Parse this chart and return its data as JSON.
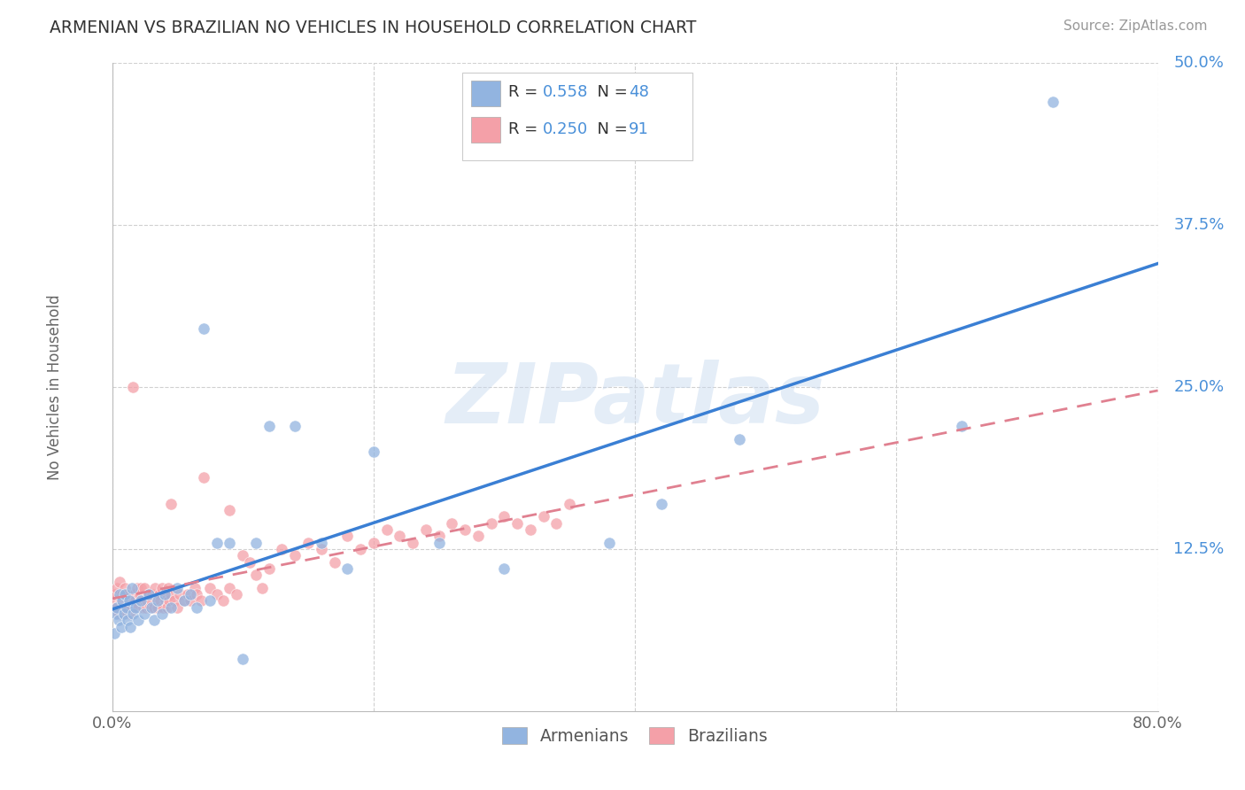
{
  "title": "ARMENIAN VS BRAZILIAN NO VEHICLES IN HOUSEHOLD CORRELATION CHART",
  "source": "Source: ZipAtlas.com",
  "ylabel": "No Vehicles in Household",
  "color_armenian": "#92b4e0",
  "color_brazilian": "#f4a0a8",
  "color_line_armenian": "#3a7fd4",
  "color_line_brazilian": "#e08090",
  "color_ytick": "#4a90d9",
  "watermark_text": "ZIPatlas",
  "background_color": "#ffffff",
  "grid_color": "#d0d0d0",
  "title_color": "#333333",
  "xlim": [
    0.0,
    0.8
  ],
  "ylim": [
    0.0,
    0.5
  ],
  "arm_x": [
    0.002,
    0.003,
    0.004,
    0.005,
    0.006,
    0.007,
    0.008,
    0.009,
    0.01,
    0.011,
    0.012,
    0.013,
    0.014,
    0.015,
    0.016,
    0.018,
    0.02,
    0.022,
    0.025,
    0.028,
    0.03,
    0.032,
    0.035,
    0.038,
    0.04,
    0.045,
    0.05,
    0.055,
    0.06,
    0.065,
    0.07,
    0.075,
    0.08,
    0.09,
    0.1,
    0.11,
    0.12,
    0.14,
    0.16,
    0.18,
    0.2,
    0.25,
    0.3,
    0.38,
    0.42,
    0.48,
    0.65,
    0.72
  ],
  "arm_y": [
    0.06,
    0.075,
    0.08,
    0.07,
    0.09,
    0.065,
    0.085,
    0.075,
    0.09,
    0.08,
    0.07,
    0.085,
    0.065,
    0.095,
    0.075,
    0.08,
    0.07,
    0.085,
    0.075,
    0.09,
    0.08,
    0.07,
    0.085,
    0.075,
    0.09,
    0.08,
    0.095,
    0.085,
    0.09,
    0.08,
    0.295,
    0.085,
    0.13,
    0.13,
    0.04,
    0.13,
    0.22,
    0.22,
    0.13,
    0.11,
    0.2,
    0.13,
    0.11,
    0.13,
    0.16,
    0.21,
    0.22,
    0.47
  ],
  "bra_x": [
    0.001,
    0.002,
    0.003,
    0.004,
    0.005,
    0.006,
    0.007,
    0.008,
    0.009,
    0.01,
    0.01,
    0.011,
    0.012,
    0.013,
    0.014,
    0.015,
    0.016,
    0.017,
    0.018,
    0.019,
    0.02,
    0.021,
    0.022,
    0.023,
    0.024,
    0.025,
    0.026,
    0.027,
    0.028,
    0.029,
    0.03,
    0.031,
    0.032,
    0.033,
    0.034,
    0.035,
    0.036,
    0.037,
    0.038,
    0.039,
    0.04,
    0.041,
    0.042,
    0.043,
    0.044,
    0.045,
    0.048,
    0.05,
    0.052,
    0.055,
    0.058,
    0.06,
    0.063,
    0.065,
    0.068,
    0.07,
    0.075,
    0.08,
    0.085,
    0.09,
    0.095,
    0.1,
    0.105,
    0.11,
    0.115,
    0.12,
    0.13,
    0.14,
    0.15,
    0.16,
    0.17,
    0.18,
    0.19,
    0.2,
    0.21,
    0.22,
    0.23,
    0.24,
    0.25,
    0.26,
    0.27,
    0.28,
    0.29,
    0.3,
    0.31,
    0.32,
    0.33,
    0.34,
    0.35,
    0.09,
    0.045
  ],
  "bra_y": [
    0.085,
    0.09,
    0.08,
    0.095,
    0.075,
    0.1,
    0.085,
    0.09,
    0.08,
    0.095,
    0.075,
    0.09,
    0.08,
    0.085,
    0.075,
    0.08,
    0.25,
    0.09,
    0.085,
    0.095,
    0.08,
    0.09,
    0.095,
    0.085,
    0.08,
    0.095,
    0.08,
    0.085,
    0.09,
    0.08,
    0.085,
    0.09,
    0.08,
    0.095,
    0.085,
    0.08,
    0.09,
    0.085,
    0.095,
    0.08,
    0.09,
    0.085,
    0.08,
    0.095,
    0.085,
    0.09,
    0.085,
    0.08,
    0.09,
    0.085,
    0.09,
    0.085,
    0.095,
    0.09,
    0.085,
    0.18,
    0.095,
    0.09,
    0.085,
    0.095,
    0.09,
    0.12,
    0.115,
    0.105,
    0.095,
    0.11,
    0.125,
    0.12,
    0.13,
    0.125,
    0.115,
    0.135,
    0.125,
    0.13,
    0.14,
    0.135,
    0.13,
    0.14,
    0.135,
    0.145,
    0.14,
    0.135,
    0.145,
    0.15,
    0.145,
    0.14,
    0.15,
    0.145,
    0.16,
    0.155,
    0.16
  ]
}
